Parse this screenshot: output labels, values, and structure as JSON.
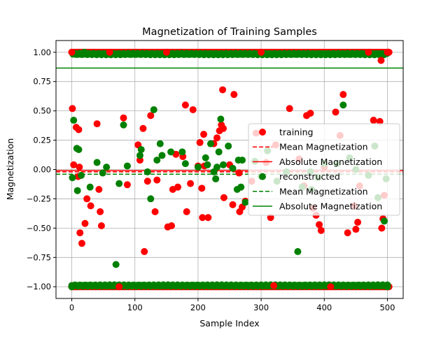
{
  "chart_data": {
    "type": "scatter",
    "title": "Magnetization of Training Samples",
    "xlabel": "Sample Index",
    "ylabel": "Magnetization",
    "xlim": [
      -25,
      525
    ],
    "ylim": [
      -1.1,
      1.1
    ],
    "xticks": [
      0,
      100,
      200,
      300,
      400,
      500
    ],
    "xtick_labels": [
      "0",
      "100",
      "200",
      "300",
      "400",
      "500"
    ],
    "yticks": [
      -1.0,
      -0.75,
      -0.5,
      -0.25,
      0.0,
      0.25,
      0.5,
      0.75,
      1.0
    ],
    "ytick_labels": [
      "−1.00",
      "−0.75",
      "−0.50",
      "−0.25",
      "0.00",
      "0.25",
      "0.50",
      "0.75",
      "1.00"
    ],
    "grid": true,
    "legend_position": "center-right",
    "legend": [
      {
        "label": "training",
        "kind": "marker",
        "color": "#ff0000"
      },
      {
        "label": "Mean Magnetization",
        "kind": "dashed",
        "color": "#ff0000"
      },
      {
        "label": "Absolute Magnetization",
        "kind": "solid",
        "color": "#ff0000"
      },
      {
        "label": "reconstructed",
        "kind": "marker",
        "color": "#008000"
      },
      {
        "label": "Mean Magnetization",
        "kind": "dashed",
        "color": "#008000"
      },
      {
        "label": "Absolute Magnetization",
        "kind": "solid",
        "color": "#008000"
      }
    ],
    "lines": [
      {
        "series": "training",
        "kind": "mean",
        "y": -0.02,
        "color": "#ff0000",
        "style": "dashed"
      },
      {
        "series": "training",
        "kind": "absolute",
        "y": -0.01,
        "color": "#ff0000",
        "style": "solid"
      },
      {
        "series": "reconstructed",
        "kind": "mean",
        "y": -0.04,
        "color": "#008000",
        "style": "dashed"
      },
      {
        "series": "reconstructed",
        "kind": "absolute",
        "y": 0.865,
        "color": "#008000",
        "style": "solid"
      }
    ],
    "series": [
      {
        "name": "training",
        "color": "#ff0000",
        "points": [
          [
            0,
            1.0
          ],
          [
            0,
            -1.0
          ],
          [
            1,
            0.52
          ],
          [
            3,
            0.04
          ],
          [
            7,
            0.36
          ],
          [
            10,
            -0.06
          ],
          [
            11,
            0.34
          ],
          [
            12,
            0.02
          ],
          [
            13,
            -0.54
          ],
          [
            16,
            -0.63
          ],
          [
            21,
            -0.46
          ],
          [
            24,
            -0.25
          ],
          [
            30,
            -0.31
          ],
          [
            40,
            0.39
          ],
          [
            43,
            -0.17
          ],
          [
            45,
            -0.36
          ],
          [
            47,
            -0.48
          ],
          [
            60,
            1.0
          ],
          [
            75,
            -1.0
          ],
          [
            82,
            0.44
          ],
          [
            88,
            -0.13
          ],
          [
            105,
            0.21
          ],
          [
            108,
            0.08
          ],
          [
            113,
            0.35
          ],
          [
            115,
            -0.7
          ],
          [
            120,
            -0.1
          ],
          [
            125,
            0.46
          ],
          [
            132,
            -0.36
          ],
          [
            135,
            -0.09
          ],
          [
            150,
            1.0
          ],
          [
            152,
            -0.49
          ],
          [
            158,
            -0.48
          ],
          [
            160,
            -0.17
          ],
          [
            165,
            0.13
          ],
          [
            168,
            -0.15
          ],
          [
            176,
            0.11
          ],
          [
            180,
            0.55
          ],
          [
            182,
            -0.36
          ],
          [
            188,
            -0.12
          ],
          [
            192,
            0.51
          ],
          [
            200,
            0.03
          ],
          [
            203,
            0.23
          ],
          [
            206,
            -0.16
          ],
          [
            207,
            -0.41
          ],
          [
            209,
            0.3
          ],
          [
            210,
            0.03
          ],
          [
            216,
            -0.41
          ],
          [
            225,
            0.22
          ],
          [
            230,
            0.27
          ],
          [
            234,
            0.33
          ],
          [
            237,
            0.38
          ],
          [
            239,
            0.68
          ],
          [
            240,
            0.35
          ],
          [
            241,
            -0.24
          ],
          [
            250,
            0.04
          ],
          [
            255,
            -0.3
          ],
          [
            257,
            0.64
          ],
          [
            265,
            -0.03
          ],
          [
            266,
            -0.36
          ],
          [
            270,
            -0.32
          ],
          [
            275,
            -0.27
          ],
          [
            285,
            -0.1
          ],
          [
            292,
            0.31
          ],
          [
            300,
            1.0
          ],
          [
            308,
            0.06
          ],
          [
            315,
            -0.41
          ],
          [
            320,
            -0.99
          ],
          [
            323,
            0.21
          ],
          [
            345,
            0.52
          ],
          [
            360,
            0.09
          ],
          [
            368,
            -0.14
          ],
          [
            372,
            0.46
          ],
          [
            378,
            0.48
          ],
          [
            382,
            -0.33
          ],
          [
            387,
            -0.39
          ],
          [
            392,
            -0.47
          ],
          [
            395,
            -0.52
          ],
          [
            400,
            0.02
          ],
          [
            410,
            -1.0
          ],
          [
            418,
            0.49
          ],
          [
            425,
            0.29
          ],
          [
            430,
            0.64
          ],
          [
            437,
            -0.54
          ],
          [
            447,
            -0.31
          ],
          [
            450,
            -0.51
          ],
          [
            453,
            -0.45
          ],
          [
            456,
            -0.14
          ],
          [
            470,
            1.0
          ],
          [
            478,
            0.42
          ],
          [
            488,
            0.41
          ],
          [
            490,
            0.93
          ],
          [
            491,
            -0.5
          ],
          [
            493,
            -0.42
          ],
          [
            495,
            -0.22
          ],
          [
            500,
            1.0
          ],
          [
            500,
            -1.0
          ],
          [
            502,
            1.0
          ]
        ]
      },
      {
        "name": "reconstructed",
        "color": "#008000",
        "points": [
          [
            0,
            -1.0
          ],
          [
            1,
            -0.07
          ],
          [
            3,
            0.42
          ],
          [
            8,
            0.18
          ],
          [
            9,
            -0.18
          ],
          [
            11,
            0.17
          ],
          [
            15,
            -0.05
          ],
          [
            20,
            1.0
          ],
          [
            29,
            -0.15
          ],
          [
            40,
            0.06
          ],
          [
            49,
            -0.03
          ],
          [
            55,
            0.02
          ],
          [
            70,
            -0.81
          ],
          [
            75,
            -0.12
          ],
          [
            82,
            0.38
          ],
          [
            88,
            0.03
          ],
          [
            108,
            0.12
          ],
          [
            110,
            0.17
          ],
          [
            120,
            -0.02
          ],
          [
            125,
            -0.25
          ],
          [
            130,
            0.51
          ],
          [
            135,
            0.08
          ],
          [
            140,
            0.22
          ],
          [
            143,
            0.12
          ],
          [
            157,
            0.15
          ],
          [
            175,
            0.15
          ],
          [
            180,
            0.05
          ],
          [
            200,
            0.02
          ],
          [
            212,
            0.1
          ],
          [
            215,
            0.04
          ],
          [
            220,
            0.22
          ],
          [
            225,
            -0.02
          ],
          [
            228,
            -0.08
          ],
          [
            230,
            0.02
          ],
          [
            233,
            0.15
          ],
          [
            236,
            0.43
          ],
          [
            240,
            0.04
          ],
          [
            248,
            0.2
          ],
          [
            255,
            0.01
          ],
          [
            262,
            -0.17
          ],
          [
            264,
            0.08
          ],
          [
            268,
            -0.15
          ],
          [
            270,
            0.08
          ],
          [
            275,
            -0.28
          ],
          [
            290,
            0.07
          ],
          [
            300,
            -0.06
          ],
          [
            310,
            0.16
          ],
          [
            325,
            -0.1
          ],
          [
            340,
            -0.02
          ],
          [
            358,
            -0.7
          ],
          [
            365,
            -0.15
          ],
          [
            378,
            -0.02
          ],
          [
            380,
            -0.17
          ],
          [
            390,
            -0.07
          ],
          [
            400,
            0.05
          ],
          [
            420,
            0.05
          ],
          [
            430,
            0.55
          ],
          [
            440,
            0.1
          ],
          [
            450,
            0.0
          ],
          [
            470,
            -0.05
          ],
          [
            480,
            0.2
          ],
          [
            485,
            -0.24
          ],
          [
            495,
            -0.44
          ],
          [
            498,
            -0.08
          ],
          [
            500,
            -1.0
          ]
        ]
      }
    ],
    "bands": [
      {
        "series": "training",
        "y": 1.0,
        "x_range": [
          0,
          503
        ]
      },
      {
        "series": "training",
        "y": -1.0,
        "x_range": [
          0,
          503
        ]
      },
      {
        "series": "reconstructed",
        "y": 0.985,
        "x_range": [
          2,
          500
        ]
      },
      {
        "series": "reconstructed",
        "y": -0.99,
        "x_range": [
          0,
          500
        ]
      }
    ]
  }
}
